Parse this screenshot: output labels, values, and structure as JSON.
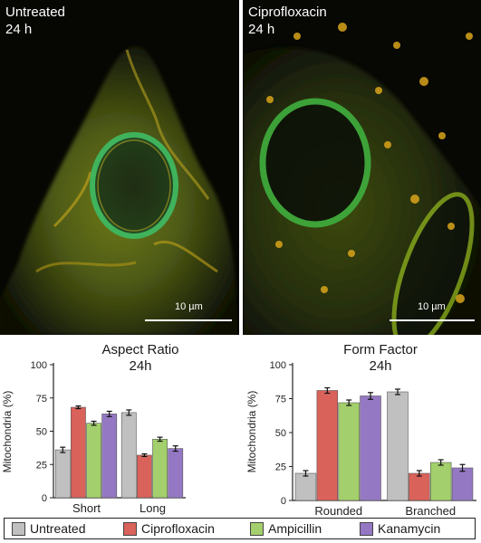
{
  "panels": {
    "left": {
      "label_line1": "Untreated",
      "label_line2": "24 h",
      "scale_bar": "10 µm"
    },
    "right": {
      "label_line1": "Ciprofloxacin",
      "label_line2": "24 h",
      "scale_bar": "10 µm"
    }
  },
  "legend": [
    {
      "name": "Untreated",
      "color": "#c0c0c0"
    },
    {
      "name": "Ciprofloxacin",
      "color": "#d9625a"
    },
    {
      "name": "Ampicillin",
      "color": "#a3cf6c"
    },
    {
      "name": "Kanamycin",
      "color": "#9578c3"
    }
  ],
  "chart_data": [
    {
      "type": "bar",
      "title": "Aspect Ratio",
      "subtitle": "24h",
      "ylabel": "Mitochondria (%)",
      "ylim": [
        0,
        100
      ],
      "yticks": [
        0,
        25,
        50,
        75,
        100
      ],
      "categories": [
        "Short",
        "Long"
      ],
      "series": [
        {
          "name": "Untreated",
          "values": [
            36,
            64
          ],
          "errors": [
            2,
            2
          ]
        },
        {
          "name": "Ciprofloxacin",
          "values": [
            68,
            32
          ],
          "errors": [
            1,
            1
          ]
        },
        {
          "name": "Ampicillin",
          "values": [
            56,
            44
          ],
          "errors": [
            1.5,
            1.5
          ]
        },
        {
          "name": "Kanamycin",
          "values": [
            63,
            37
          ],
          "errors": [
            2,
            2
          ]
        }
      ]
    },
    {
      "type": "bar",
      "title": "Form Factor",
      "subtitle": "24h",
      "ylabel": "Mitochondria (%)",
      "ylim": [
        0,
        100
      ],
      "yticks": [
        0,
        25,
        50,
        75,
        100
      ],
      "categories": [
        "Rounded",
        "Branched"
      ],
      "series": [
        {
          "name": "Untreated",
          "values": [
            20,
            80
          ],
          "errors": [
            2,
            2
          ]
        },
        {
          "name": "Ciprofloxacin",
          "values": [
            81,
            20
          ],
          "errors": [
            2,
            2
          ]
        },
        {
          "name": "Ampicillin",
          "values": [
            72,
            28
          ],
          "errors": [
            2,
            2
          ]
        },
        {
          "name": "Kanamycin",
          "values": [
            77,
            24
          ],
          "errors": [
            2.5,
            2.5
          ]
        }
      ]
    }
  ]
}
